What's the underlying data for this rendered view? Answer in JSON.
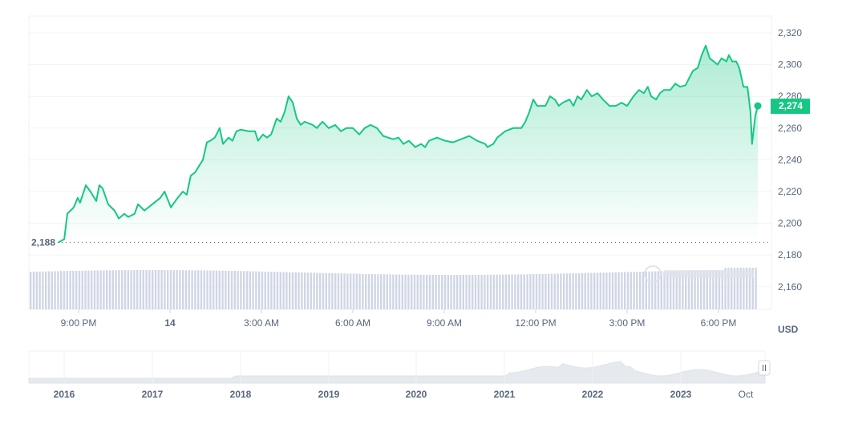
{
  "chart_data": {
    "type": "area",
    "currency_label": "USD",
    "current_price_label": "2,274",
    "base_price_label": "2,188",
    "base_price": 2188,
    "ylim": [
      2145,
      2330
    ],
    "y_ticks": [
      {
        "v": 2320,
        "label": "2,320"
      },
      {
        "v": 2300,
        "label": "2,300"
      },
      {
        "v": 2280,
        "label": "2,280"
      },
      {
        "v": 2260,
        "label": "2,260"
      },
      {
        "v": 2240,
        "label": "2,240"
      },
      {
        "v": 2220,
        "label": "2,220"
      },
      {
        "v": 2200,
        "label": "2,200"
      },
      {
        "v": 2180,
        "label": "2,180"
      },
      {
        "v": 2160,
        "label": "2,160"
      }
    ],
    "x_ticks": [
      {
        "h": -3,
        "label": "9:00 PM"
      },
      {
        "h": 0,
        "label": "14",
        "bold": true
      },
      {
        "h": 3,
        "label": "3:00 AM"
      },
      {
        "h": 6,
        "label": "6:00 AM"
      },
      {
        "h": 9,
        "label": "9:00 AM"
      },
      {
        "h": 12,
        "label": "12:00 PM"
      },
      {
        "h": 15,
        "label": "3:00 PM"
      },
      {
        "h": 18,
        "label": "6:00 PM"
      }
    ],
    "x_unit": "hours from 00:00 on the 14th",
    "series": [
      [
        -3.66,
        2188
      ],
      [
        -3.47,
        2190
      ],
      [
        -3.37,
        2206
      ],
      [
        -3.16,
        2210
      ],
      [
        -3.03,
        2216
      ],
      [
        -2.95,
        2213
      ],
      [
        -2.76,
        2224
      ],
      [
        -2.61,
        2220
      ],
      [
        -2.42,
        2214
      ],
      [
        -2.32,
        2224
      ],
      [
        -2.21,
        2222
      ],
      [
        -2.03,
        2212
      ],
      [
        -1.82,
        2208
      ],
      [
        -1.68,
        2203
      ],
      [
        -1.5,
        2206
      ],
      [
        -1.37,
        2204
      ],
      [
        -1.16,
        2206
      ],
      [
        -1.05,
        2212
      ],
      [
        -0.84,
        2208
      ],
      [
        -0.58,
        2212
      ],
      [
        -0.32,
        2216
      ],
      [
        -0.18,
        2220
      ],
      [
        0.03,
        2210
      ],
      [
        0.21,
        2215
      ],
      [
        0.42,
        2220
      ],
      [
        0.55,
        2218
      ],
      [
        0.68,
        2230
      ],
      [
        0.82,
        2232
      ],
      [
        0.95,
        2236
      ],
      [
        1.08,
        2240
      ],
      [
        1.21,
        2251
      ],
      [
        1.32,
        2252
      ],
      [
        1.47,
        2254
      ],
      [
        1.63,
        2260
      ],
      [
        1.74,
        2250
      ],
      [
        1.92,
        2254
      ],
      [
        2.05,
        2252
      ],
      [
        2.18,
        2258
      ],
      [
        2.32,
        2259
      ],
      [
        2.58,
        2258
      ],
      [
        2.79,
        2258
      ],
      [
        2.89,
        2252
      ],
      [
        3.05,
        2256
      ],
      [
        3.18,
        2254
      ],
      [
        3.32,
        2256
      ],
      [
        3.5,
        2266
      ],
      [
        3.63,
        2264
      ],
      [
        3.76,
        2270
      ],
      [
        3.89,
        2280
      ],
      [
        4.03,
        2276
      ],
      [
        4.16,
        2266
      ],
      [
        4.29,
        2262
      ],
      [
        4.42,
        2264
      ],
      [
        4.68,
        2262
      ],
      [
        4.82,
        2260
      ],
      [
        5.0,
        2264
      ],
      [
        5.21,
        2260
      ],
      [
        5.42,
        2262
      ],
      [
        5.61,
        2258
      ],
      [
        5.79,
        2260
      ],
      [
        6.0,
        2260
      ],
      [
        6.21,
        2256
      ],
      [
        6.39,
        2260
      ],
      [
        6.58,
        2262
      ],
      [
        6.79,
        2260
      ],
      [
        7.0,
        2255
      ],
      [
        7.32,
        2253
      ],
      [
        7.5,
        2254
      ],
      [
        7.66,
        2250
      ],
      [
        7.84,
        2252
      ],
      [
        8.05,
        2248
      ],
      [
        8.24,
        2250
      ],
      [
        8.37,
        2248
      ],
      [
        8.5,
        2252
      ],
      [
        8.76,
        2254
      ],
      [
        9.03,
        2252
      ],
      [
        9.29,
        2251
      ],
      [
        9.55,
        2253
      ],
      [
        9.82,
        2255
      ],
      [
        10.08,
        2252
      ],
      [
        10.34,
        2250
      ],
      [
        10.42,
        2248
      ],
      [
        10.61,
        2250
      ],
      [
        10.74,
        2254
      ],
      [
        11.0,
        2258
      ],
      [
        11.26,
        2260
      ],
      [
        11.53,
        2260
      ],
      [
        11.66,
        2264
      ],
      [
        11.79,
        2270
      ],
      [
        11.92,
        2278
      ],
      [
        12.05,
        2274
      ],
      [
        12.32,
        2274
      ],
      [
        12.47,
        2280
      ],
      [
        12.63,
        2278
      ],
      [
        12.76,
        2274
      ],
      [
        12.89,
        2276
      ],
      [
        13.11,
        2278
      ],
      [
        13.24,
        2274
      ],
      [
        13.37,
        2280
      ],
      [
        13.5,
        2278
      ],
      [
        13.68,
        2284
      ],
      [
        13.84,
        2280
      ],
      [
        14.03,
        2282
      ],
      [
        14.21,
        2278
      ],
      [
        14.42,
        2274
      ],
      [
        14.63,
        2274
      ],
      [
        14.82,
        2276
      ],
      [
        15.0,
        2274
      ],
      [
        15.21,
        2280
      ],
      [
        15.39,
        2284
      ],
      [
        15.55,
        2282
      ],
      [
        15.68,
        2286
      ],
      [
        15.79,
        2280
      ],
      [
        15.95,
        2278
      ],
      [
        16.08,
        2282
      ],
      [
        16.21,
        2284
      ],
      [
        16.42,
        2284
      ],
      [
        16.58,
        2288
      ],
      [
        16.74,
        2286
      ],
      [
        16.92,
        2287
      ],
      [
        17.05,
        2292
      ],
      [
        17.16,
        2296
      ],
      [
        17.32,
        2298
      ],
      [
        17.45,
        2306
      ],
      [
        17.58,
        2312
      ],
      [
        17.71,
        2304
      ],
      [
        17.84,
        2302
      ],
      [
        17.97,
        2300
      ],
      [
        18.1,
        2304
      ],
      [
        18.26,
        2302
      ],
      [
        18.34,
        2306
      ],
      [
        18.45,
        2302
      ],
      [
        18.58,
        2302
      ],
      [
        18.68,
        2298
      ],
      [
        18.82,
        2286
      ],
      [
        18.95,
        2286
      ],
      [
        19.05,
        2270
      ],
      [
        19.1,
        2250
      ],
      [
        19.21,
        2268
      ],
      [
        19.29,
        2274
      ]
    ],
    "navigator_years": [
      "2016",
      "2017",
      "2018",
      "2019",
      "2020",
      "2021",
      "2022",
      "2023",
      "Oct"
    ],
    "colors": {
      "up": "#16c784",
      "down": "#ea3943",
      "volume": "#cfd6e4",
      "axis_text": "#58667e"
    }
  }
}
